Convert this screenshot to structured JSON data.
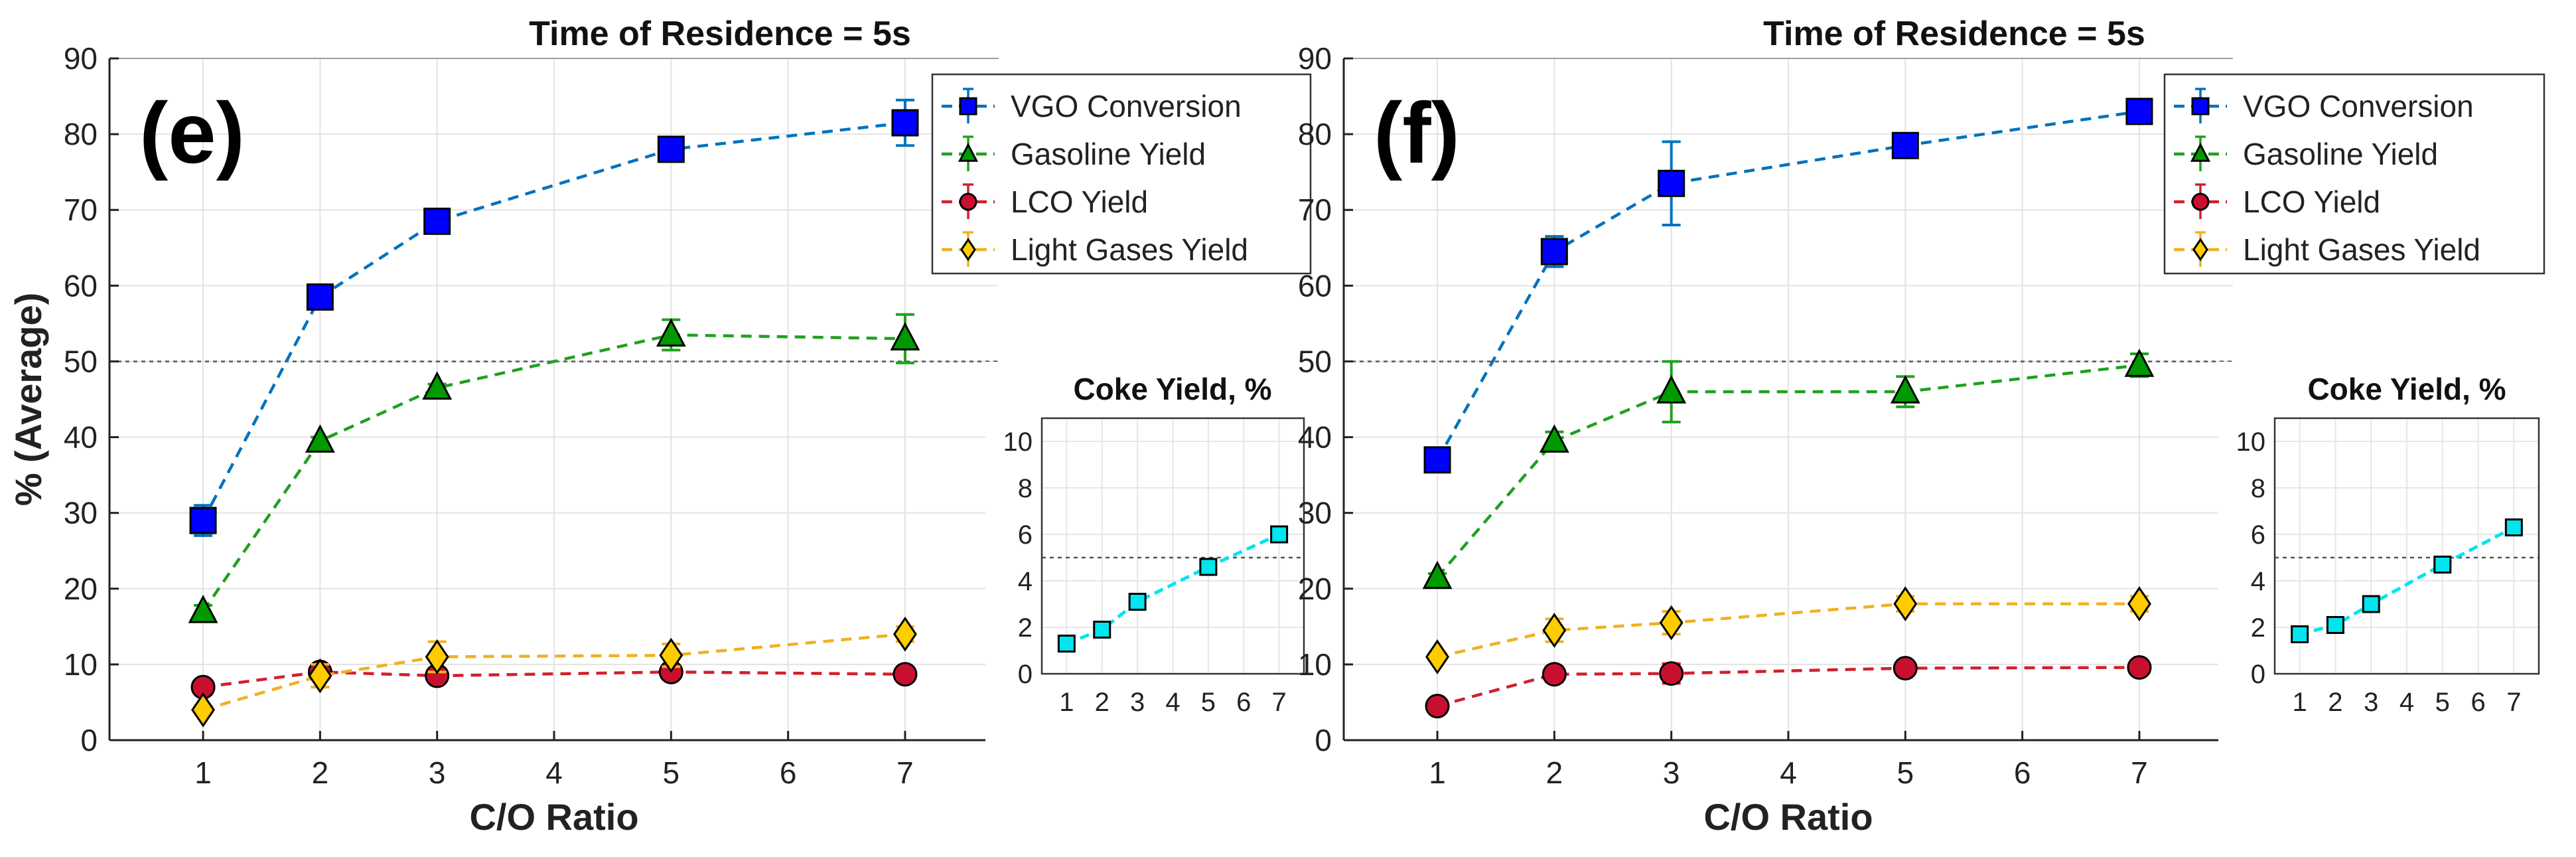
{
  "chart_data": [
    {
      "panel": "(e)",
      "type": "line",
      "title": "Time of Residence = 5s",
      "xlabel": "C/O Ratio",
      "ylabel": "% (Average)",
      "xlim": [
        0.2,
        7.8
      ],
      "ylim": [
        0,
        90
      ],
      "xticks": [
        1,
        2,
        3,
        4,
        5,
        6,
        7
      ],
      "yticks": [
        0,
        10,
        20,
        30,
        40,
        50,
        60,
        70,
        80,
        90
      ],
      "grid": true,
      "reference_line": 50,
      "legend_position": "top-right",
      "series": [
        {
          "name": "VGO Conversion",
          "color": "#0072BD",
          "face": "#0000FF",
          "marker": "square",
          "x": [
            1,
            2,
            3,
            5,
            7
          ],
          "y": [
            29,
            58.5,
            68.5,
            78,
            81.5
          ],
          "err": [
            2,
            0.5,
            1,
            1.5,
            3
          ]
        },
        {
          "name": "Gasoline Yield",
          "color": "#20A020",
          "face": "#009900",
          "marker": "triangle",
          "x": [
            1,
            2,
            3,
            5,
            7
          ],
          "y": [
            17,
            39.5,
            46.5,
            53.5,
            53
          ],
          "err": [
            0.8,
            0.5,
            0.5,
            2,
            3.2
          ]
        },
        {
          "name": "LCO Yield",
          "color": "#D0202E",
          "face": "#C8102E",
          "marker": "circle",
          "x": [
            1,
            2,
            3,
            5,
            7
          ],
          "y": [
            7,
            9,
            8.5,
            9,
            8.7
          ],
          "err": [
            0.3,
            0.5,
            0.4,
            0.4,
            0.3
          ]
        },
        {
          "name": "Light Gases Yield",
          "color": "#F0B020",
          "face": "#FFCC00",
          "marker": "diamond",
          "x": [
            1,
            2,
            3,
            5,
            7
          ],
          "y": [
            4,
            8.5,
            11,
            11.2,
            14
          ],
          "err": [
            0.5,
            1.5,
            2,
            1.5,
            1
          ]
        }
      ],
      "inset": {
        "type": "line",
        "title": "Coke Yield, %",
        "xlim": [
          0.3,
          7.7
        ],
        "ylim": [
          0,
          11
        ],
        "xticks": [
          1,
          2,
          3,
          4,
          5,
          6,
          7
        ],
        "yticks": [
          0,
          2,
          4,
          6,
          8,
          10
        ],
        "reference_line": 5,
        "series": [
          {
            "name": "Coke Yield",
            "color": "#00E5EE",
            "face": "#00E5EE",
            "marker": "square",
            "x": [
              1,
              2,
              3,
              5,
              7
            ],
            "y": [
              1.3,
              1.9,
              3.1,
              4.6,
              6.0
            ]
          }
        ]
      }
    },
    {
      "panel": "(f)",
      "type": "line",
      "title": "Time of Residence = 5s",
      "xlabel": "C/O Ratio",
      "ylabel": "% (Average)",
      "xlim": [
        0.2,
        7.8
      ],
      "ylim": [
        0,
        90
      ],
      "xticks": [
        1,
        2,
        3,
        4,
        5,
        6,
        7
      ],
      "yticks": [
        0,
        10,
        20,
        30,
        40,
        50,
        60,
        70,
        80,
        90
      ],
      "grid": true,
      "reference_line": 50,
      "legend_position": "top-right",
      "series": [
        {
          "name": "VGO Conversion",
          "color": "#0072BD",
          "face": "#0000FF",
          "marker": "square",
          "x": [
            1,
            2,
            3,
            5,
            7
          ],
          "y": [
            37,
            64.5,
            73.5,
            78.5,
            83
          ],
          "err": [
            0.5,
            2,
            5.5,
            1,
            1.5
          ]
        },
        {
          "name": "Gasoline Yield",
          "color": "#20A020",
          "face": "#009900",
          "marker": "triangle",
          "x": [
            1,
            2,
            3,
            5,
            7
          ],
          "y": [
            21.5,
            39.5,
            46,
            46,
            49.5
          ],
          "err": [
            0.5,
            1.2,
            4,
            2,
            1.5
          ]
        },
        {
          "name": "LCO Yield",
          "color": "#D0202E",
          "face": "#C8102E",
          "marker": "circle",
          "x": [
            1,
            2,
            3,
            5,
            7
          ],
          "y": [
            4.5,
            8.7,
            8.8,
            9.5,
            9.6
          ],
          "err": [
            0.3,
            1,
            1.3,
            0.5,
            0.5
          ]
        },
        {
          "name": "Light Gases Yield",
          "color": "#F0B020",
          "face": "#FFCC00",
          "marker": "diamond",
          "x": [
            1,
            2,
            3,
            5,
            7
          ],
          "y": [
            11,
            14.5,
            15.5,
            18,
            18
          ],
          "err": [
            0.5,
            1.5,
            1.5,
            1,
            1
          ]
        }
      ],
      "inset": {
        "type": "line",
        "title": "Coke Yield, %",
        "xlim": [
          0.3,
          7.7
        ],
        "ylim": [
          0,
          11
        ],
        "xticks": [
          1,
          2,
          3,
          4,
          5,
          6,
          7
        ],
        "yticks": [
          0,
          2,
          4,
          6,
          8,
          10
        ],
        "reference_line": 5,
        "series": [
          {
            "name": "Coke Yield",
            "color": "#00E5EE",
            "face": "#00E5EE",
            "marker": "square",
            "x": [
              1,
              2,
              3,
              5,
              7
            ],
            "y": [
              1.7,
              2.1,
              3.0,
              4.7,
              6.3
            ]
          }
        ]
      }
    }
  ]
}
